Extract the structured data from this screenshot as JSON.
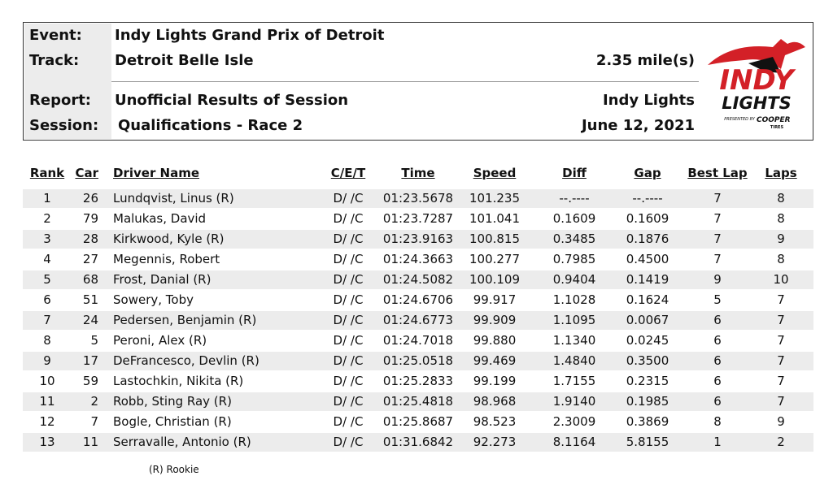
{
  "header": {
    "labels": [
      "Event:",
      "Track:",
      "Report:",
      "Session:"
    ],
    "event": "Indy Lights Grand Prix of Detroit",
    "track": "Detroit Belle Isle",
    "length": "2.35 mile(s)",
    "report": "Unofficial Results of Session",
    "series": "Indy Lights",
    "session": "Qualifications - Race 2",
    "date": "June 12, 2021",
    "logo": {
      "main": "INDY",
      "sub": "LIGHTS",
      "presented": "PRESENTED BY",
      "sponsor": "COOPER",
      "sponsor_sub": "TIRES"
    }
  },
  "table": {
    "columns": [
      "Rank",
      "Car",
      "Driver Name",
      "C/E/T",
      "Time",
      "Speed",
      "Diff",
      "Gap",
      "Best Lap",
      "Laps"
    ],
    "rows": [
      [
        "1",
        "26",
        "Lundqvist, Linus (R)",
        "D/ /C",
        "01:23.5678",
        "101.235",
        "--.----",
        "--.----",
        "7",
        "8"
      ],
      [
        "2",
        "79",
        "Malukas, David",
        "D/ /C",
        "01:23.7287",
        "101.041",
        "0.1609",
        "0.1609",
        "7",
        "8"
      ],
      [
        "3",
        "28",
        "Kirkwood, Kyle (R)",
        "D/ /C",
        "01:23.9163",
        "100.815",
        "0.3485",
        "0.1876",
        "7",
        "9"
      ],
      [
        "4",
        "27",
        "Megennis, Robert",
        "D/ /C",
        "01:24.3663",
        "100.277",
        "0.7985",
        "0.4500",
        "7",
        "8"
      ],
      [
        "5",
        "68",
        "Frost, Danial (R)",
        "D/ /C",
        "01:24.5082",
        "100.109",
        "0.9404",
        "0.1419",
        "9",
        "10"
      ],
      [
        "6",
        "51",
        "Sowery, Toby",
        "D/ /C",
        "01:24.6706",
        "99.917",
        "1.1028",
        "0.1624",
        "5",
        "7"
      ],
      [
        "7",
        "24",
        "Pedersen, Benjamin (R)",
        "D/ /C",
        "01:24.6773",
        "99.909",
        "1.1095",
        "0.0067",
        "6",
        "7"
      ],
      [
        "8",
        "5",
        "Peroni, Alex (R)",
        "D/ /C",
        "01:24.7018",
        "99.880",
        "1.1340",
        "0.0245",
        "6",
        "7"
      ],
      [
        "9",
        "17",
        "DeFrancesco, Devlin (R)",
        "D/ /C",
        "01:25.0518",
        "99.469",
        "1.4840",
        "0.3500",
        "6",
        "7"
      ],
      [
        "10",
        "59",
        "Lastochkin, Nikita (R)",
        "D/ /C",
        "01:25.2833",
        "99.199",
        "1.7155",
        "0.2315",
        "6",
        "7"
      ],
      [
        "11",
        "2",
        "Robb, Sting Ray (R)",
        "D/ /C",
        "01:25.4818",
        "98.968",
        "1.9140",
        "0.1985",
        "6",
        "7"
      ],
      [
        "12",
        "7",
        "Bogle, Christian (R)",
        "D/ /C",
        "01:25.8687",
        "98.523",
        "2.3009",
        "0.3869",
        "8",
        "9"
      ],
      [
        "13",
        "11",
        "Serravalle, Antonio (R)",
        "D/ /C",
        "01:31.6842",
        "92.273",
        "8.1164",
        "5.8155",
        "1",
        "2"
      ]
    ]
  },
  "footnote": "(R) Rookie"
}
